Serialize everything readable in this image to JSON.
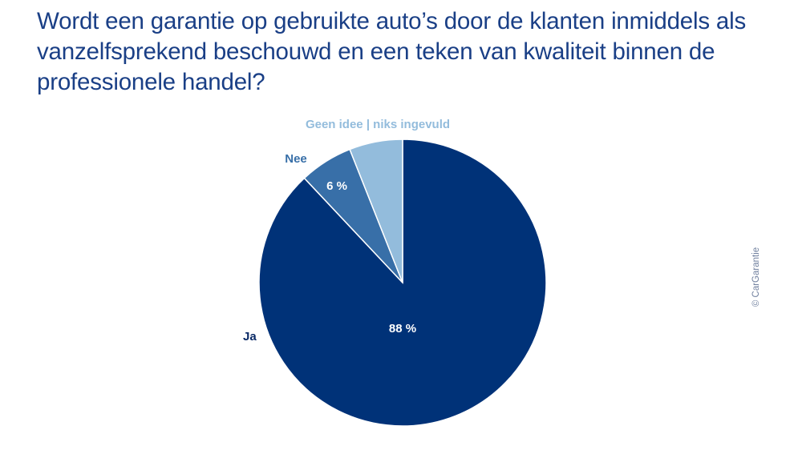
{
  "title": "Wordt een garantie op gebruikte auto’s door de klanten inmiddels als vanzelfsprekend beschouwd en een teken van kwaliteit binnen de professionele handel?",
  "copyright": "© CarGarantie",
  "colors": {
    "title": "#1a3f86",
    "background": "#ffffff"
  },
  "chart_data": {
    "type": "pie",
    "title": "Wordt een garantie op gebruikte auto’s door de klanten inmiddels als vanzelfsprekend beschouwd en een teken van kwaliteit binnen de professionele handel?",
    "slices": [
      {
        "label": "Ja",
        "value": 88,
        "value_label": "88 %",
        "color": "#003278"
      },
      {
        "label": "Nee",
        "value": 6,
        "value_label": "6 %",
        "color": "#386fa8"
      },
      {
        "label": "Geen idee | niks ingevuld",
        "value": 6,
        "value_label": "",
        "color": "#93bcdc"
      }
    ],
    "start": "12 o'clock",
    "direction": "clockwise",
    "legend": "none (labels outside slices)"
  }
}
